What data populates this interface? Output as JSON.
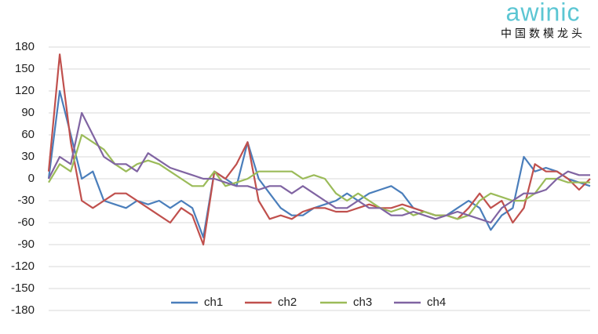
{
  "brand": {
    "name": "awinic",
    "tagline": "中国数模龙头"
  },
  "chart_data": {
    "type": "line",
    "categories": [
      null,
      null,
      null,
      null,
      null,
      null,
      null,
      null,
      null,
      null,
      null,
      null,
      null,
      null,
      null,
      null,
      null,
      null,
      null,
      null,
      null,
      null,
      null,
      null,
      null,
      null,
      null,
      null,
      null,
      null,
      null,
      null,
      null,
      null,
      null,
      null,
      null,
      null,
      null,
      null,
      null,
      null,
      null,
      null,
      null,
      null,
      null,
      null,
      null,
      null
    ],
    "ylim": [
      -180,
      180
    ],
    "yticks": [
      -180,
      -150,
      -120,
      -90,
      -60,
      -30,
      0,
      30,
      60,
      90,
      120,
      150,
      180
    ],
    "grid": true,
    "legend": "bottom",
    "series": [
      {
        "name": "ch1",
        "color": "#4a7ebb",
        "values": [
          0,
          120,
          60,
          0,
          10,
          -30,
          -35,
          -40,
          -30,
          -35,
          -30,
          -40,
          -30,
          -40,
          -80,
          10,
          0,
          -10,
          50,
          0,
          -20,
          -40,
          -50,
          -50,
          -40,
          -35,
          -30,
          -20,
          -30,
          -20,
          -15,
          -10,
          -20,
          -40,
          -45,
          -50,
          -50,
          -40,
          -30,
          -40,
          -70,
          -50,
          -40,
          30,
          10,
          15,
          10,
          0,
          -5,
          -10
        ]
      },
      {
        "name": "ch2",
        "color": "#c0504d",
        "values": [
          10,
          170,
          50,
          -30,
          -40,
          -30,
          -20,
          -20,
          -30,
          -40,
          -50,
          -60,
          -40,
          -50,
          -90,
          10,
          0,
          20,
          50,
          -30,
          -55,
          -50,
          -55,
          -45,
          -40,
          -40,
          -45,
          -45,
          -40,
          -35,
          -40,
          -40,
          -35,
          -40,
          -45,
          -50,
          -50,
          -55,
          -40,
          -20,
          -40,
          -30,
          -60,
          -40,
          20,
          10,
          10,
          0,
          -15,
          0
        ]
      },
      {
        "name": "ch3",
        "color": "#9bbb59",
        "values": [
          -5,
          20,
          10,
          60,
          50,
          40,
          20,
          10,
          20,
          25,
          20,
          10,
          0,
          -10,
          -10,
          10,
          -10,
          -5,
          0,
          10,
          10,
          10,
          10,
          0,
          5,
          0,
          -20,
          -30,
          -20,
          -30,
          -40,
          -45,
          -40,
          -50,
          -45,
          -50,
          -50,
          -55,
          -50,
          -30,
          -20,
          -25,
          -30,
          -30,
          -20,
          0,
          0,
          -5,
          -5,
          -5
        ]
      },
      {
        "name": "ch4",
        "color": "#8064a2",
        "values": [
          0,
          30,
          20,
          90,
          60,
          30,
          20,
          20,
          10,
          35,
          25,
          15,
          10,
          5,
          0,
          0,
          -5,
          -10,
          -10,
          -15,
          -10,
          -10,
          -20,
          -10,
          -20,
          -30,
          -40,
          -40,
          -30,
          -40,
          -40,
          -50,
          -50,
          -45,
          -50,
          -55,
          -50,
          -45,
          -50,
          -55,
          -60,
          -40,
          -30,
          -20,
          -20,
          -15,
          0,
          10,
          5,
          5
        ]
      }
    ]
  }
}
